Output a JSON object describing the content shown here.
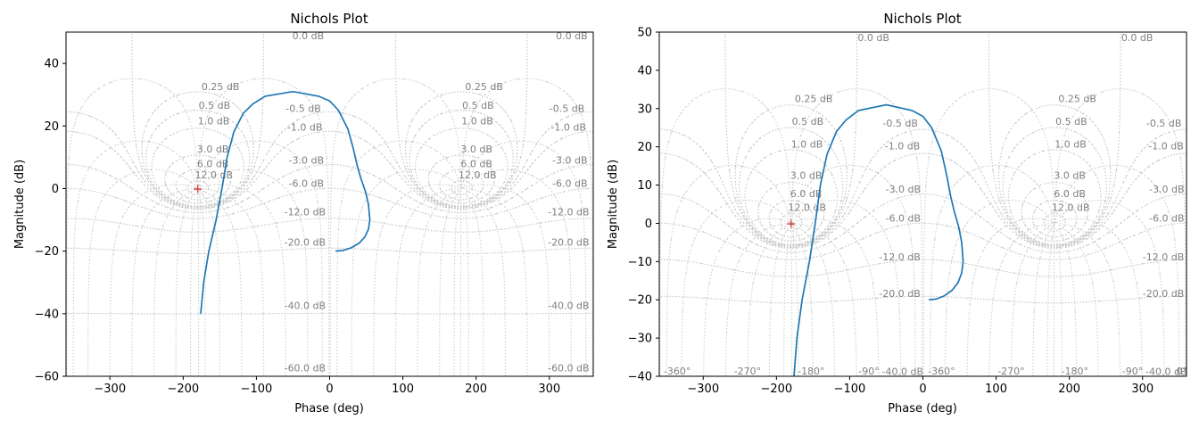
{
  "chart_data": [
    {
      "type": "line",
      "title": "Nichols Plot",
      "xlabel": "Phase (deg)",
      "ylabel": "Magnitude (dB)",
      "xlim": [
        -360,
        360
      ],
      "ylim": [
        -60,
        50
      ],
      "xticks": [
        -300,
        -200,
        -100,
        0,
        100,
        200,
        300
      ],
      "yticks": [
        -60,
        -40,
        -20,
        0,
        20,
        40
      ],
      "xtick_labels": [
        "−300",
        "−200",
        "−100",
        "0",
        "100",
        "200",
        "300"
      ],
      "ytick_labels": [
        "−60",
        "−40",
        "−20",
        "0",
        "20",
        "40"
      ],
      "grid": "nichols",
      "series_color": "#1f77b4",
      "critical_point": {
        "x": -180,
        "y": 0,
        "color": "#d62728"
      },
      "series": [
        {
          "x": [
            -176,
            -172,
            -165,
            -155,
            -147,
            -140,
            -131,
            -118,
            -105,
            -88,
            -50,
            -15,
            0,
            12,
            25,
            32,
            38,
            43,
            49,
            53,
            55,
            53,
            48,
            40,
            29,
            18,
            8
          ],
          "y": [
            -40,
            -30,
            -20,
            -10,
            0,
            10,
            18,
            24,
            27,
            29.5,
            31,
            29.5,
            28,
            25,
            19,
            13,
            7,
            3,
            -1,
            -5,
            -10,
            -13,
            -15.5,
            -17.5,
            -19,
            -19.8,
            -20
          ]
        }
      ],
      "grid_labels": [
        {
          "text": "0.0 dB",
          "x": -51,
          "y": 47.7
        },
        {
          "text": "0.0 dB",
          "x": 309,
          "y": 47.7
        },
        {
          "text": "0.25 dB",
          "x": -175,
          "y": 31.5
        },
        {
          "text": "0.25 dB",
          "x": 185,
          "y": 31.5
        },
        {
          "text": "0.5 dB",
          "x": -179,
          "y": 25.5
        },
        {
          "text": "0.5 dB",
          "x": 181,
          "y": 25.5
        },
        {
          "text": "1.0 dB",
          "x": -180,
          "y": 20.5
        },
        {
          "text": "1.0 dB",
          "x": 180,
          "y": 20.5
        },
        {
          "text": "3.0 dB",
          "x": -181,
          "y": 11.5
        },
        {
          "text": "3.0 dB",
          "x": 179,
          "y": 11.5
        },
        {
          "text": "6.0 dB",
          "x": -181,
          "y": 6.8
        },
        {
          "text": "6.0 dB",
          "x": 179,
          "y": 6.8
        },
        {
          "text": "12.0 dB",
          "x": -184,
          "y": 3.2
        },
        {
          "text": "12.0 dB",
          "x": 176,
          "y": 3.2
        },
        {
          "text": "-0.5 dB",
          "x": -60,
          "y": 24.5
        },
        {
          "text": "-0.5 dB",
          "x": 300,
          "y": 24.5
        },
        {
          "text": "-1.0 dB",
          "x": -58,
          "y": 18.5
        },
        {
          "text": "-1.0 dB",
          "x": 302,
          "y": 18.5
        },
        {
          "text": "-3.0 dB",
          "x": -56,
          "y": 8
        },
        {
          "text": "-3.0 dB",
          "x": 304,
          "y": 8
        },
        {
          "text": "-6.0 dB",
          "x": -56,
          "y": 0.5
        },
        {
          "text": "-6.0 dB",
          "x": 304,
          "y": 0.5
        },
        {
          "text": "-12.0 dB",
          "x": -62,
          "y": -8.5
        },
        {
          "text": "-12.0 dB",
          "x": 298,
          "y": -8.5
        },
        {
          "text": "-20.0 dB",
          "x": -62,
          "y": -18.3
        },
        {
          "text": "-20.0 dB",
          "x": 298,
          "y": -18.3
        },
        {
          "text": "-40.0 dB",
          "x": -62,
          "y": -38.5
        },
        {
          "text": "-40.0 dB",
          "x": 298,
          "y": -38.5
        },
        {
          "text": "-60.0 dB",
          "x": -62,
          "y": -58.5
        },
        {
          "text": "-60.0 dB",
          "x": 298,
          "y": -58.5
        }
      ]
    },
    {
      "type": "line",
      "title": "Nichols Plot",
      "xlabel": "Phase (deg)",
      "ylabel": "Magnitude (dB)",
      "xlim": [
        -360,
        360
      ],
      "ylim": [
        -40,
        50
      ],
      "xticks": [
        -300,
        -200,
        -100,
        0,
        100,
        200,
        300
      ],
      "yticks": [
        -40,
        -30,
        -20,
        -10,
        0,
        10,
        20,
        30,
        40,
        50
      ],
      "xtick_labels": [
        "−300",
        "−200",
        "−100",
        "0",
        "100",
        "200",
        "300"
      ],
      "ytick_labels": [
        "−40",
        "−30",
        "−20",
        "−10",
        "0",
        "10",
        "20",
        "30",
        "40",
        "50"
      ],
      "grid": "nichols",
      "series_color": "#1f77b4",
      "critical_point": {
        "x": -180,
        "y": 0,
        "color": "#d62728"
      },
      "series": [
        {
          "x": [
            -176,
            -172,
            -165,
            -155,
            -147,
            -140,
            -131,
            -118,
            -105,
            -88,
            -50,
            -15,
            0,
            12,
            25,
            32,
            38,
            43,
            49,
            53,
            55,
            53,
            48,
            40,
            29,
            18,
            8
          ],
          "y": [
            -40,
            -30,
            -20,
            -10,
            0,
            10,
            18,
            24,
            27,
            29.5,
            31,
            29.5,
            28,
            25,
            19,
            13,
            7,
            3,
            -1,
            -5,
            -10,
            -13,
            -15.5,
            -17.5,
            -19,
            -19.8,
            -20
          ]
        }
      ],
      "grid_labels": [
        {
          "text": "0.0 dB",
          "x": -89,
          "y": 47.7
        },
        {
          "text": "0.0 dB",
          "x": 271,
          "y": 47.7
        },
        {
          "text": "0.25 dB",
          "x": -175,
          "y": 31.7
        },
        {
          "text": "0.25 dB",
          "x": 185,
          "y": 31.7
        },
        {
          "text": "0.5 dB",
          "x": -179,
          "y": 25.7
        },
        {
          "text": "0.5 dB",
          "x": 181,
          "y": 25.7
        },
        {
          "text": "1.0 dB",
          "x": -180,
          "y": 19.8
        },
        {
          "text": "1.0 dB",
          "x": 180,
          "y": 19.8
        },
        {
          "text": "3.0 dB",
          "x": -181,
          "y": 11.7
        },
        {
          "text": "3.0 dB",
          "x": 179,
          "y": 11.7
        },
        {
          "text": "6.0 dB",
          "x": -181,
          "y": 6.9
        },
        {
          "text": "6.0 dB",
          "x": 179,
          "y": 6.9
        },
        {
          "text": "12.0 dB",
          "x": -184,
          "y": 3.2
        },
        {
          "text": "12.0 dB",
          "x": 176,
          "y": 3.2
        },
        {
          "text": "-0.5 dB",
          "x": -55,
          "y": 25.3
        },
        {
          "text": "-0.5 dB",
          "x": 305,
          "y": 25.3
        },
        {
          "text": "-1.0 dB",
          "x": -52,
          "y": 19.3
        },
        {
          "text": "-1.0 dB",
          "x": 308,
          "y": 19.3
        },
        {
          "text": "-3.0 dB",
          "x": -51,
          "y": 8
        },
        {
          "text": "-3.0 dB",
          "x": 309,
          "y": 8
        },
        {
          "text": "-6.0 dB",
          "x": -51,
          "y": 0.5
        },
        {
          "text": "-6.0 dB",
          "x": 309,
          "y": 0.5
        },
        {
          "text": "-12.0 dB",
          "x": -60,
          "y": -9.7
        },
        {
          "text": "-12.0 dB",
          "x": 300,
          "y": -9.7
        },
        {
          "text": "-20.0 dB",
          "x": -60,
          "y": -19.3
        },
        {
          "text": "-20.0 dB",
          "x": 300,
          "y": -19.3
        },
        {
          "text": "-40.0 dB",
          "x": -56,
          "y": -39.7
        },
        {
          "text": "-40.0 dB",
          "x": 304,
          "y": -39.7
        },
        {
          "text": "-360°",
          "x": -354,
          "y": -39.5
        },
        {
          "text": "-270°",
          "x": -258,
          "y": -39.5
        },
        {
          "text": "-180°",
          "x": -171,
          "y": -39.5
        },
        {
          "text": "-90°",
          "x": -88,
          "y": -39.5
        },
        {
          "text": "-360°",
          "x": 7,
          "y": -39.5
        },
        {
          "text": "-270°",
          "x": 102,
          "y": -39.5
        },
        {
          "text": "-180°",
          "x": 189,
          "y": -39.5
        },
        {
          "text": "-90°",
          "x": 272,
          "y": -39.5
        },
        {
          "text": "0°",
          "x": 346,
          "y": -39.5
        }
      ]
    }
  ]
}
